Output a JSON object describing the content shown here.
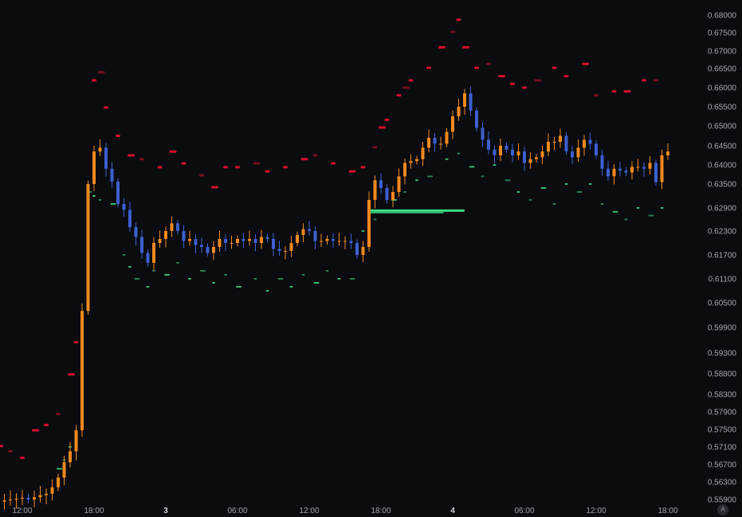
{
  "chart_data": {
    "type": "candlestick",
    "interval": "30m",
    "colors": {
      "background": "#0b0c10",
      "up": "#f0891e",
      "down": "#3d5fd0",
      "resistance": "#e3102f",
      "support": "#3ddc84"
    },
    "y_ticks": [
      "0.68000",
      "0.67500",
      "0.67000",
      "0.66500",
      "0.66000",
      "0.65500",
      "0.65000",
      "0.64500",
      "0.64000",
      "0.63500",
      "0.62900",
      "0.62300",
      "0.61700",
      "0.61100",
      "0.60500",
      "0.59900",
      "0.59300",
      "0.58800",
      "0.58300",
      "0.57900",
      "0.57500",
      "0.57100",
      "0.56700",
      "0.56300",
      "0.55900"
    ],
    "x_ticks": [
      {
        "label": "12:00",
        "bar": 4,
        "day": false
      },
      {
        "label": "18:00",
        "bar": 16,
        "day": false
      },
      {
        "label": "3",
        "bar": 28,
        "day": true
      },
      {
        "label": "06:00",
        "bar": 40,
        "day": false
      },
      {
        "label": "12:00",
        "bar": 52,
        "day": false
      },
      {
        "label": "18:00",
        "bar": 64,
        "day": false
      },
      {
        "label": "4",
        "bar": 76,
        "day": true
      },
      {
        "label": "06:00",
        "bar": 88,
        "day": false
      },
      {
        "label": "12:00",
        "bar": 100,
        "day": false
      },
      {
        "label": "18:00",
        "bar": 112,
        "day": false
      }
    ],
    "first_open": 0.5583,
    "closes": [
      0.5585,
      0.5588,
      0.559,
      0.5592,
      0.5594,
      0.559,
      0.5595,
      0.56,
      0.5603,
      0.5618,
      0.564,
      0.5675,
      0.57,
      0.5748,
      0.603,
      0.635,
      0.6435,
      0.6445,
      0.639,
      0.6356,
      0.63,
      0.6285,
      0.624,
      0.6215,
      0.6175,
      0.615,
      0.62,
      0.621,
      0.623,
      0.625,
      0.623,
      0.6205,
      0.621,
      0.6195,
      0.619,
      0.6175,
      0.619,
      0.621,
      0.62,
      0.62,
      0.621,
      0.6205,
      0.621,
      0.62,
      0.6215,
      0.621,
      0.6185,
      0.618,
      0.618,
      0.62,
      0.622,
      0.6235,
      0.623,
      0.6205,
      0.6205,
      0.621,
      0.6205,
      0.6205,
      0.6205,
      0.62,
      0.617,
      0.619,
      0.631,
      0.636,
      0.634,
      0.631,
      0.633,
      0.637,
      0.6405,
      0.641,
      0.6415,
      0.6445,
      0.647,
      0.6455,
      0.6455,
      0.6485,
      0.6525,
      0.655,
      0.6585,
      0.654,
      0.6495,
      0.6465,
      0.644,
      0.6425,
      0.645,
      0.644,
      0.6425,
      0.6435,
      0.6405,
      0.6415,
      0.642,
      0.6435,
      0.646,
      0.646,
      0.6475,
      0.6435,
      0.642,
      0.6445,
      0.6465,
      0.6455,
      0.6425,
      0.639,
      0.637,
      0.639,
      0.6385,
      0.638,
      0.6395,
      0.6395,
      0.639,
      0.6405,
      0.6355,
      0.6425,
      0.6435
    ],
    "resistance": [
      [
        0,
        0.5712
      ],
      [
        2,
        0.57
      ],
      [
        4,
        0.5685
      ],
      [
        6,
        0.5748
      ],
      [
        8,
        0.576
      ],
      [
        10,
        0.5785
      ],
      [
        12,
        0.5878
      ],
      [
        13,
        0.5955
      ],
      [
        16,
        0.6619
      ],
      [
        17,
        0.664
      ],
      [
        18,
        0.6548
      ],
      [
        20,
        0.6475
      ],
      [
        22,
        0.6425
      ],
      [
        24,
        0.6415
      ],
      [
        27,
        0.6394
      ],
      [
        29,
        0.6435
      ],
      [
        31,
        0.6404
      ],
      [
        34,
        0.6373
      ],
      [
        36,
        0.6342
      ],
      [
        38,
        0.6394
      ],
      [
        40,
        0.6394
      ],
      [
        43,
        0.6404
      ],
      [
        45,
        0.6383
      ],
      [
        48,
        0.6394
      ],
      [
        51,
        0.6415
      ],
      [
        53,
        0.6425
      ],
      [
        56,
        0.6404
      ],
      [
        59,
        0.6383
      ],
      [
        61,
        0.6394
      ],
      [
        63,
        0.6446
      ],
      [
        64,
        0.6496
      ],
      [
        65,
        0.6516
      ],
      [
        67,
        0.658
      ],
      [
        68,
        0.66
      ],
      [
        69,
        0.6619
      ],
      [
        72,
        0.6652
      ],
      [
        74,
        0.671
      ],
      [
        76,
        0.6752
      ],
      [
        77,
        0.6787
      ],
      [
        78,
        0.671
      ],
      [
        80,
        0.6652
      ],
      [
        82,
        0.6663
      ],
      [
        84,
        0.663
      ],
      [
        86,
        0.661
      ],
      [
        88,
        0.66
      ],
      [
        90,
        0.6619
      ],
      [
        93,
        0.6652
      ],
      [
        95,
        0.663
      ],
      [
        98,
        0.6663
      ],
      [
        100,
        0.658
      ],
      [
        103,
        0.659
      ],
      [
        105,
        0.659
      ],
      [
        108,
        0.6619
      ],
      [
        110,
        0.6619
      ]
    ],
    "support": [
      [
        10,
        0.566
      ],
      [
        11,
        0.568
      ],
      [
        12,
        0.571
      ],
      [
        15,
        0.633
      ],
      [
        16,
        0.632
      ],
      [
        17,
        0.631
      ],
      [
        19,
        0.63
      ],
      [
        21,
        0.617
      ],
      [
        22,
        0.614
      ],
      [
        23,
        0.611
      ],
      [
        25,
        0.609
      ],
      [
        26,
        0.613
      ],
      [
        28,
        0.612
      ],
      [
        30,
        0.615
      ],
      [
        32,
        0.611
      ],
      [
        34,
        0.613
      ],
      [
        36,
        0.61
      ],
      [
        38,
        0.612
      ],
      [
        40,
        0.609
      ],
      [
        43,
        0.611
      ],
      [
        45,
        0.608
      ],
      [
        47,
        0.611
      ],
      [
        49,
        0.609
      ],
      [
        51,
        0.612
      ],
      [
        53,
        0.61
      ],
      [
        55,
        0.613
      ],
      [
        57,
        0.611
      ],
      [
        59,
        0.611
      ],
      [
        61,
        0.623
      ],
      [
        63,
        0.626
      ],
      [
        66,
        0.631
      ],
      [
        68,
        0.633
      ],
      [
        70,
        0.636
      ],
      [
        72,
        0.637
      ],
      [
        75,
        0.6415
      ],
      [
        77,
        0.643
      ],
      [
        79,
        0.6395
      ],
      [
        81,
        0.637
      ],
      [
        83,
        0.64
      ],
      [
        85,
        0.636
      ],
      [
        87,
        0.633
      ],
      [
        89,
        0.631
      ],
      [
        91,
        0.634
      ],
      [
        93,
        0.63
      ],
      [
        95,
        0.635
      ],
      [
        97,
        0.633
      ],
      [
        99,
        0.635
      ],
      [
        101,
        0.63
      ],
      [
        103,
        0.628
      ],
      [
        105,
        0.626
      ],
      [
        107,
        0.629
      ],
      [
        109,
        0.627
      ],
      [
        111,
        0.629
      ]
    ],
    "support_zone": {
      "from_bar": 62,
      "to_bar": 78,
      "value": 0.6282
    }
  },
  "controls": {
    "auto_scale_label": "A"
  }
}
